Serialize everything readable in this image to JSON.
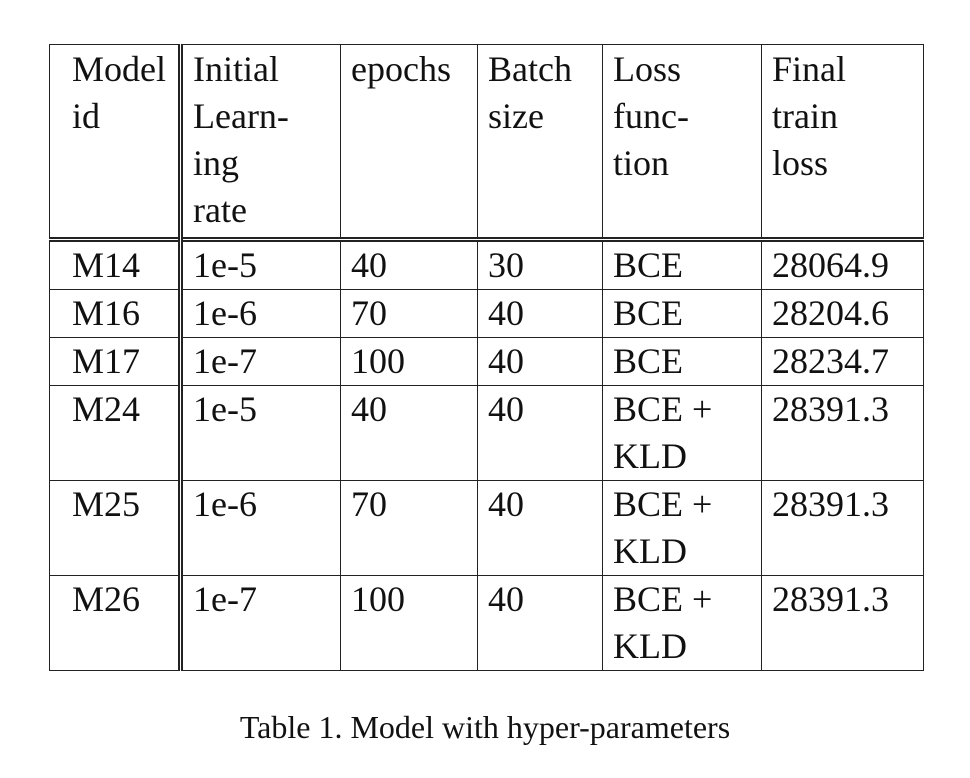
{
  "table": {
    "headers": [
      [
        "Model",
        "id"
      ],
      [
        "Initial",
        "Learn-",
        "ing",
        "rate"
      ],
      [
        "epochs"
      ],
      [
        "Batch",
        "size"
      ],
      [
        "Loss",
        "func-",
        "tion"
      ],
      [
        "Final",
        "train",
        "loss"
      ]
    ],
    "rows": [
      [
        [
          "M14"
        ],
        [
          "1e-5"
        ],
        [
          "40"
        ],
        [
          "30"
        ],
        [
          "BCE"
        ],
        [
          "28064.9"
        ]
      ],
      [
        [
          "M16"
        ],
        [
          "1e-6"
        ],
        [
          "70"
        ],
        [
          "40"
        ],
        [
          "BCE"
        ],
        [
          "28204.6"
        ]
      ],
      [
        [
          "M17"
        ],
        [
          "1e-7"
        ],
        [
          "100"
        ],
        [
          "40"
        ],
        [
          "BCE"
        ],
        [
          "28234.7"
        ]
      ],
      [
        [
          "M24"
        ],
        [
          "1e-5"
        ],
        [
          "40"
        ],
        [
          "40"
        ],
        [
          "BCE +",
          "KLD"
        ],
        [
          "28391.3"
        ]
      ],
      [
        [
          "M25"
        ],
        [
          "1e-6"
        ],
        [
          "70"
        ],
        [
          "40"
        ],
        [
          "BCE +",
          "KLD"
        ],
        [
          "28391.3"
        ]
      ],
      [
        [
          "M26"
        ],
        [
          "1e-7"
        ],
        [
          "100"
        ],
        [
          "40"
        ],
        [
          "BCE +",
          "KLD"
        ],
        [
          "28391.3"
        ]
      ]
    ]
  },
  "caption": "Table 1. Model with hyper-parameters"
}
